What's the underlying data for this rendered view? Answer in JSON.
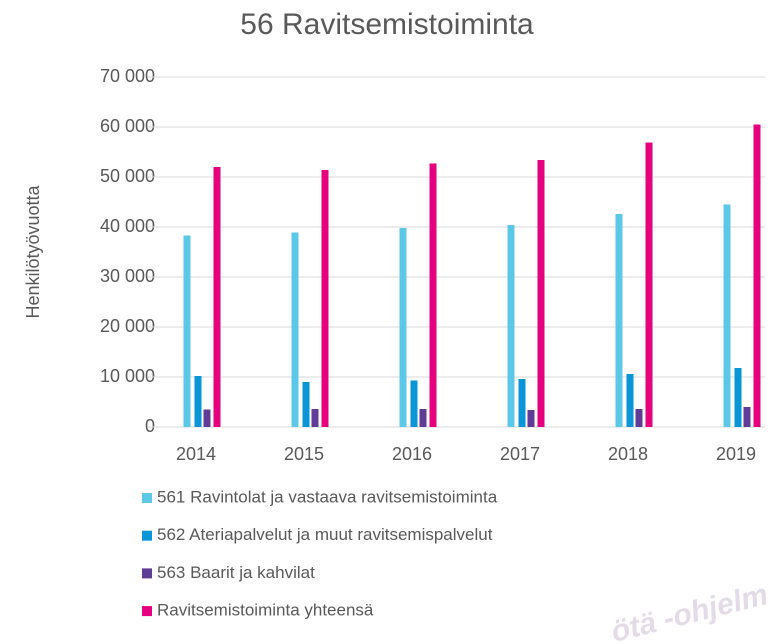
{
  "chart_data": {
    "type": "bar",
    "title": "56 Ravitsemistoiminta",
    "y_label": "Henkilötyövuotta",
    "categories": [
      "2014",
      "2015",
      "2016",
      "2017",
      "2018",
      "2019"
    ],
    "series": [
      {
        "name": "561 Ravintolat ja vastaava ravitsemistoiminta",
        "color": "#5bc8e8",
        "values": [
          38300,
          38900,
          39800,
          40400,
          42600,
          44500
        ]
      },
      {
        "name": "562 Ateriapalvelut ja muut ravitsemispalvelut",
        "color": "#0a96d6",
        "values": [
          10200,
          9000,
          9300,
          9600,
          10600,
          11800
        ]
      },
      {
        "name": "563 Baarit ja kahvilat",
        "color": "#5f3c96",
        "values": [
          3500,
          3600,
          3600,
          3400,
          3600,
          4000
        ]
      },
      {
        "name": "Ravitsemistoiminta yhteensä",
        "color": "#e5007d",
        "values": [
          52000,
          51400,
          52700,
          53400,
          56900,
          60500
        ]
      }
    ],
    "ylim": [
      0,
      70000
    ],
    "yticks": [
      0,
      {
        "value": 10000,
        "label": "10 000"
      },
      {
        "value": 20000,
        "label": "20 000"
      },
      {
        "value": 30000,
        "label": "30 000"
      },
      {
        "value": 40000,
        "label": "40 000"
      },
      {
        "value": 50000,
        "label": "50 000"
      },
      {
        "value": 60000,
        "label": "60 000"
      },
      {
        "value": 70000,
        "label": "70 000"
      }
    ],
    "grid": true,
    "legend": "bottom",
    "watermark": "ötä -ohjelm"
  }
}
